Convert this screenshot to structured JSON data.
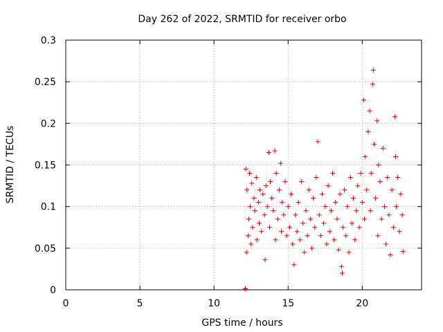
{
  "chart_data": {
    "type": "scatter",
    "title": "Day 262 of 2022, SRMTID for receiver orbo",
    "xlabel": "GPS time / hours",
    "ylabel": "SRMTID / TECUs",
    "xlim": [
      0,
      24
    ],
    "ylim": [
      0,
      0.3
    ],
    "xticks": [
      0,
      5,
      10,
      15,
      20
    ],
    "xtick_labels": [
      "0",
      "5",
      "10",
      "15",
      "20"
    ],
    "yticks": [
      0,
      0.05,
      0.1,
      0.15,
      0.2,
      0.25,
      0.3
    ],
    "ytick_labels": [
      "0",
      "0.05",
      "0.1",
      "0.15",
      "0.2",
      "0.25",
      "0.3"
    ],
    "grid": true,
    "marker": "plus",
    "color": "#dd0000",
    "series": [
      {
        "name": "SRMTID",
        "points": [
          [
            12.1,
            0.001
          ],
          [
            12.12,
            0.0015
          ],
          [
            12.15,
            0.145
          ],
          [
            12.2,
            0.045
          ],
          [
            12.22,
            0.12
          ],
          [
            12.3,
            0.065
          ],
          [
            12.35,
            0.085
          ],
          [
            12.4,
            0.14
          ],
          [
            12.45,
            0.1
          ],
          [
            12.5,
            0.055
          ],
          [
            12.55,
            0.128
          ],
          [
            12.6,
            0.075
          ],
          [
            12.7,
            0.11
          ],
          [
            12.75,
            0.095
          ],
          [
            12.85,
            0.135
          ],
          [
            12.9,
            0.06
          ],
          [
            13.0,
            0.105
          ],
          [
            13.05,
            0.08
          ],
          [
            13.1,
            0.12
          ],
          [
            13.2,
            0.07
          ],
          [
            13.3,
            0.115
          ],
          [
            13.4,
            0.09
          ],
          [
            13.45,
            0.036
          ],
          [
            13.5,
            0.125
          ],
          [
            13.6,
            0.1
          ],
          [
            13.7,
            0.165
          ],
          [
            13.75,
            0.075
          ],
          [
            13.8,
            0.13
          ],
          [
            13.9,
            0.11
          ],
          [
            14.0,
            0.095
          ],
          [
            14.1,
            0.167
          ],
          [
            14.15,
            0.06
          ],
          [
            14.2,
            0.14
          ],
          [
            14.3,
            0.085
          ],
          [
            14.4,
            0.12
          ],
          [
            14.5,
            0.152
          ],
          [
            14.55,
            0.07
          ],
          [
            14.6,
            0.105
          ],
          [
            14.7,
            0.09
          ],
          [
            14.8,
            0.13
          ],
          [
            14.9,
            0.065
          ],
          [
            15.0,
            0.1
          ],
          [
            15.1,
            0.075
          ],
          [
            15.2,
            0.115
          ],
          [
            15.3,
            0.055
          ],
          [
            15.4,
            0.03
          ],
          [
            15.5,
            0.09
          ],
          [
            15.6,
            0.07
          ],
          [
            15.7,
            0.105
          ],
          [
            15.8,
            0.06
          ],
          [
            15.9,
            0.13
          ],
          [
            16.0,
            0.08
          ],
          [
            16.1,
            0.045
          ],
          [
            16.2,
            0.095
          ],
          [
            16.3,
            0.065
          ],
          [
            16.4,
            0.12
          ],
          [
            16.5,
            0.085
          ],
          [
            16.6,
            0.05
          ],
          [
            16.7,
            0.11
          ],
          [
            16.8,
            0.075
          ],
          [
            16.9,
            0.135
          ],
          [
            17.0,
            0.178
          ],
          [
            17.1,
            0.09
          ],
          [
            17.2,
            0.065
          ],
          [
            17.3,
            0.115
          ],
          [
            17.4,
            0.08
          ],
          [
            17.5,
            0.1
          ],
          [
            17.6,
            0.055
          ],
          [
            17.7,
            0.125
          ],
          [
            17.8,
            0.07
          ],
          [
            17.9,
            0.095
          ],
          [
            18.0,
            0.14
          ],
          [
            18.1,
            0.06
          ],
          [
            18.2,
            0.105
          ],
          [
            18.3,
            0.085
          ],
          [
            18.4,
            0.048
          ],
          [
            18.5,
            0.115
          ],
          [
            18.6,
            0.028
          ],
          [
            18.65,
            0.02
          ],
          [
            18.7,
            0.075
          ],
          [
            18.8,
            0.12
          ],
          [
            18.9,
            0.065
          ],
          [
            19.0,
            0.1
          ],
          [
            19.1,
            0.045
          ],
          [
            19.2,
            0.135
          ],
          [
            19.3,
            0.08
          ],
          [
            19.4,
            0.11
          ],
          [
            19.5,
            0.06
          ],
          [
            19.6,
            0.095
          ],
          [
            19.7,
            0.125
          ],
          [
            19.8,
            0.075
          ],
          [
            19.9,
            0.14
          ],
          [
            20.0,
            0.105
          ],
          [
            20.1,
            0.228
          ],
          [
            20.15,
            0.085
          ],
          [
            20.2,
            0.16
          ],
          [
            20.3,
            0.12
          ],
          [
            20.4,
            0.19
          ],
          [
            20.5,
            0.215
          ],
          [
            20.55,
            0.095
          ],
          [
            20.6,
            0.14
          ],
          [
            20.7,
            0.247
          ],
          [
            20.75,
            0.264
          ],
          [
            20.8,
            0.175
          ],
          [
            20.9,
            0.11
          ],
          [
            21.0,
            0.203
          ],
          [
            21.05,
            0.065
          ],
          [
            21.1,
            0.15
          ],
          [
            21.2,
            0.13
          ],
          [
            21.3,
            0.085
          ],
          [
            21.4,
            0.17
          ],
          [
            21.5,
            0.1
          ],
          [
            21.6,
            0.055
          ],
          [
            21.7,
            0.135
          ],
          [
            21.8,
            0.09
          ],
          [
            21.9,
            0.042
          ],
          [
            22.0,
            0.12
          ],
          [
            22.1,
            0.075
          ],
          [
            22.2,
            0.208
          ],
          [
            22.25,
            0.16
          ],
          [
            22.3,
            0.1
          ],
          [
            22.4,
            0.135
          ],
          [
            22.5,
            0.07
          ],
          [
            22.6,
            0.115
          ],
          [
            22.7,
            0.09
          ],
          [
            22.75,
            0.046
          ]
        ]
      }
    ]
  }
}
